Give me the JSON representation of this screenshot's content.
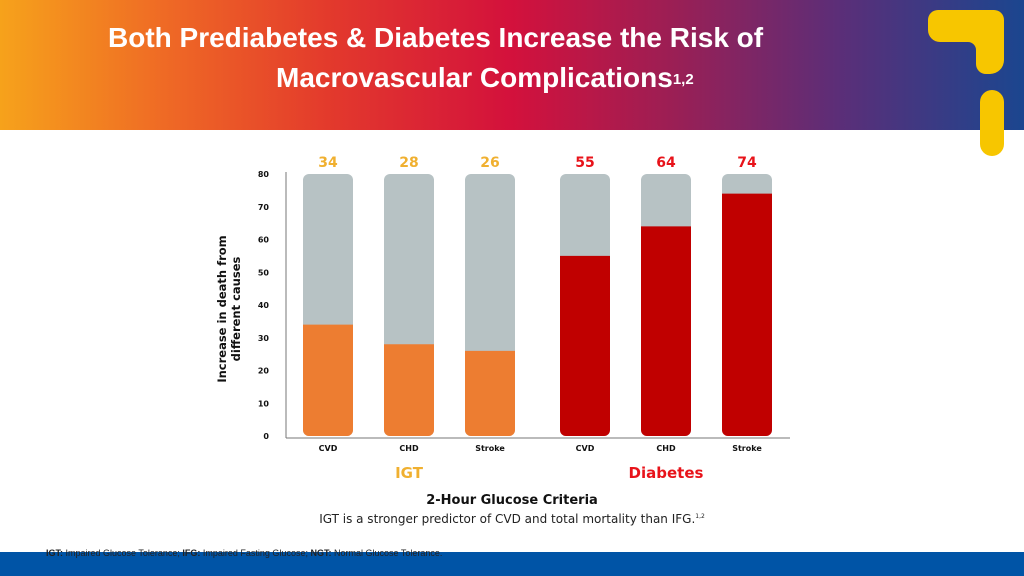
{
  "title": {
    "line1": "Both Prediabetes & Diabetes Increase the Risk of",
    "line2": "Macrovascular Complications",
    "refs": "1,2"
  },
  "chart_data": {
    "type": "bar",
    "ylabel_line1": "Increase in death from",
    "ylabel_line2": "different causes",
    "ylim": [
      0,
      80
    ],
    "yticks": [
      0,
      10,
      20,
      30,
      40,
      50,
      60,
      70,
      80
    ],
    "categories": [
      "CVD",
      "CHD",
      "Stroke",
      "CVD",
      "CHD",
      "Stroke"
    ],
    "groups": [
      {
        "name": "IGT",
        "color": "#ed7d31",
        "label_color": "#f0b030",
        "indices": [
          0,
          1,
          2
        ]
      },
      {
        "name": "Diabetes",
        "color": "#c00000",
        "label_color": "#e8131a",
        "indices": [
          3,
          4,
          5
        ]
      }
    ],
    "values": [
      34,
      28,
      26,
      55,
      64,
      74
    ],
    "background_bar_color": "#b7c2c4",
    "background_bar_value": 80
  },
  "xlabel": "2-Hour Glucose Criteria",
  "note": {
    "text": "IGT is a stronger predictor of CVD and total mortality than IFG.",
    "refs": "1,2"
  },
  "footnote": [
    {
      "abbr": "IGT:",
      "text": " Impaired Glucose Tolerance; "
    },
    {
      "abbr": "IFG:",
      "text": " Impaired Fasting Glucose; "
    },
    {
      "abbr": "NGT:",
      "text": " Normal Glucose Tolerance."
    }
  ],
  "colors": {
    "brand_yellow": "#f7c600",
    "footer_blue": "#0054a6"
  }
}
